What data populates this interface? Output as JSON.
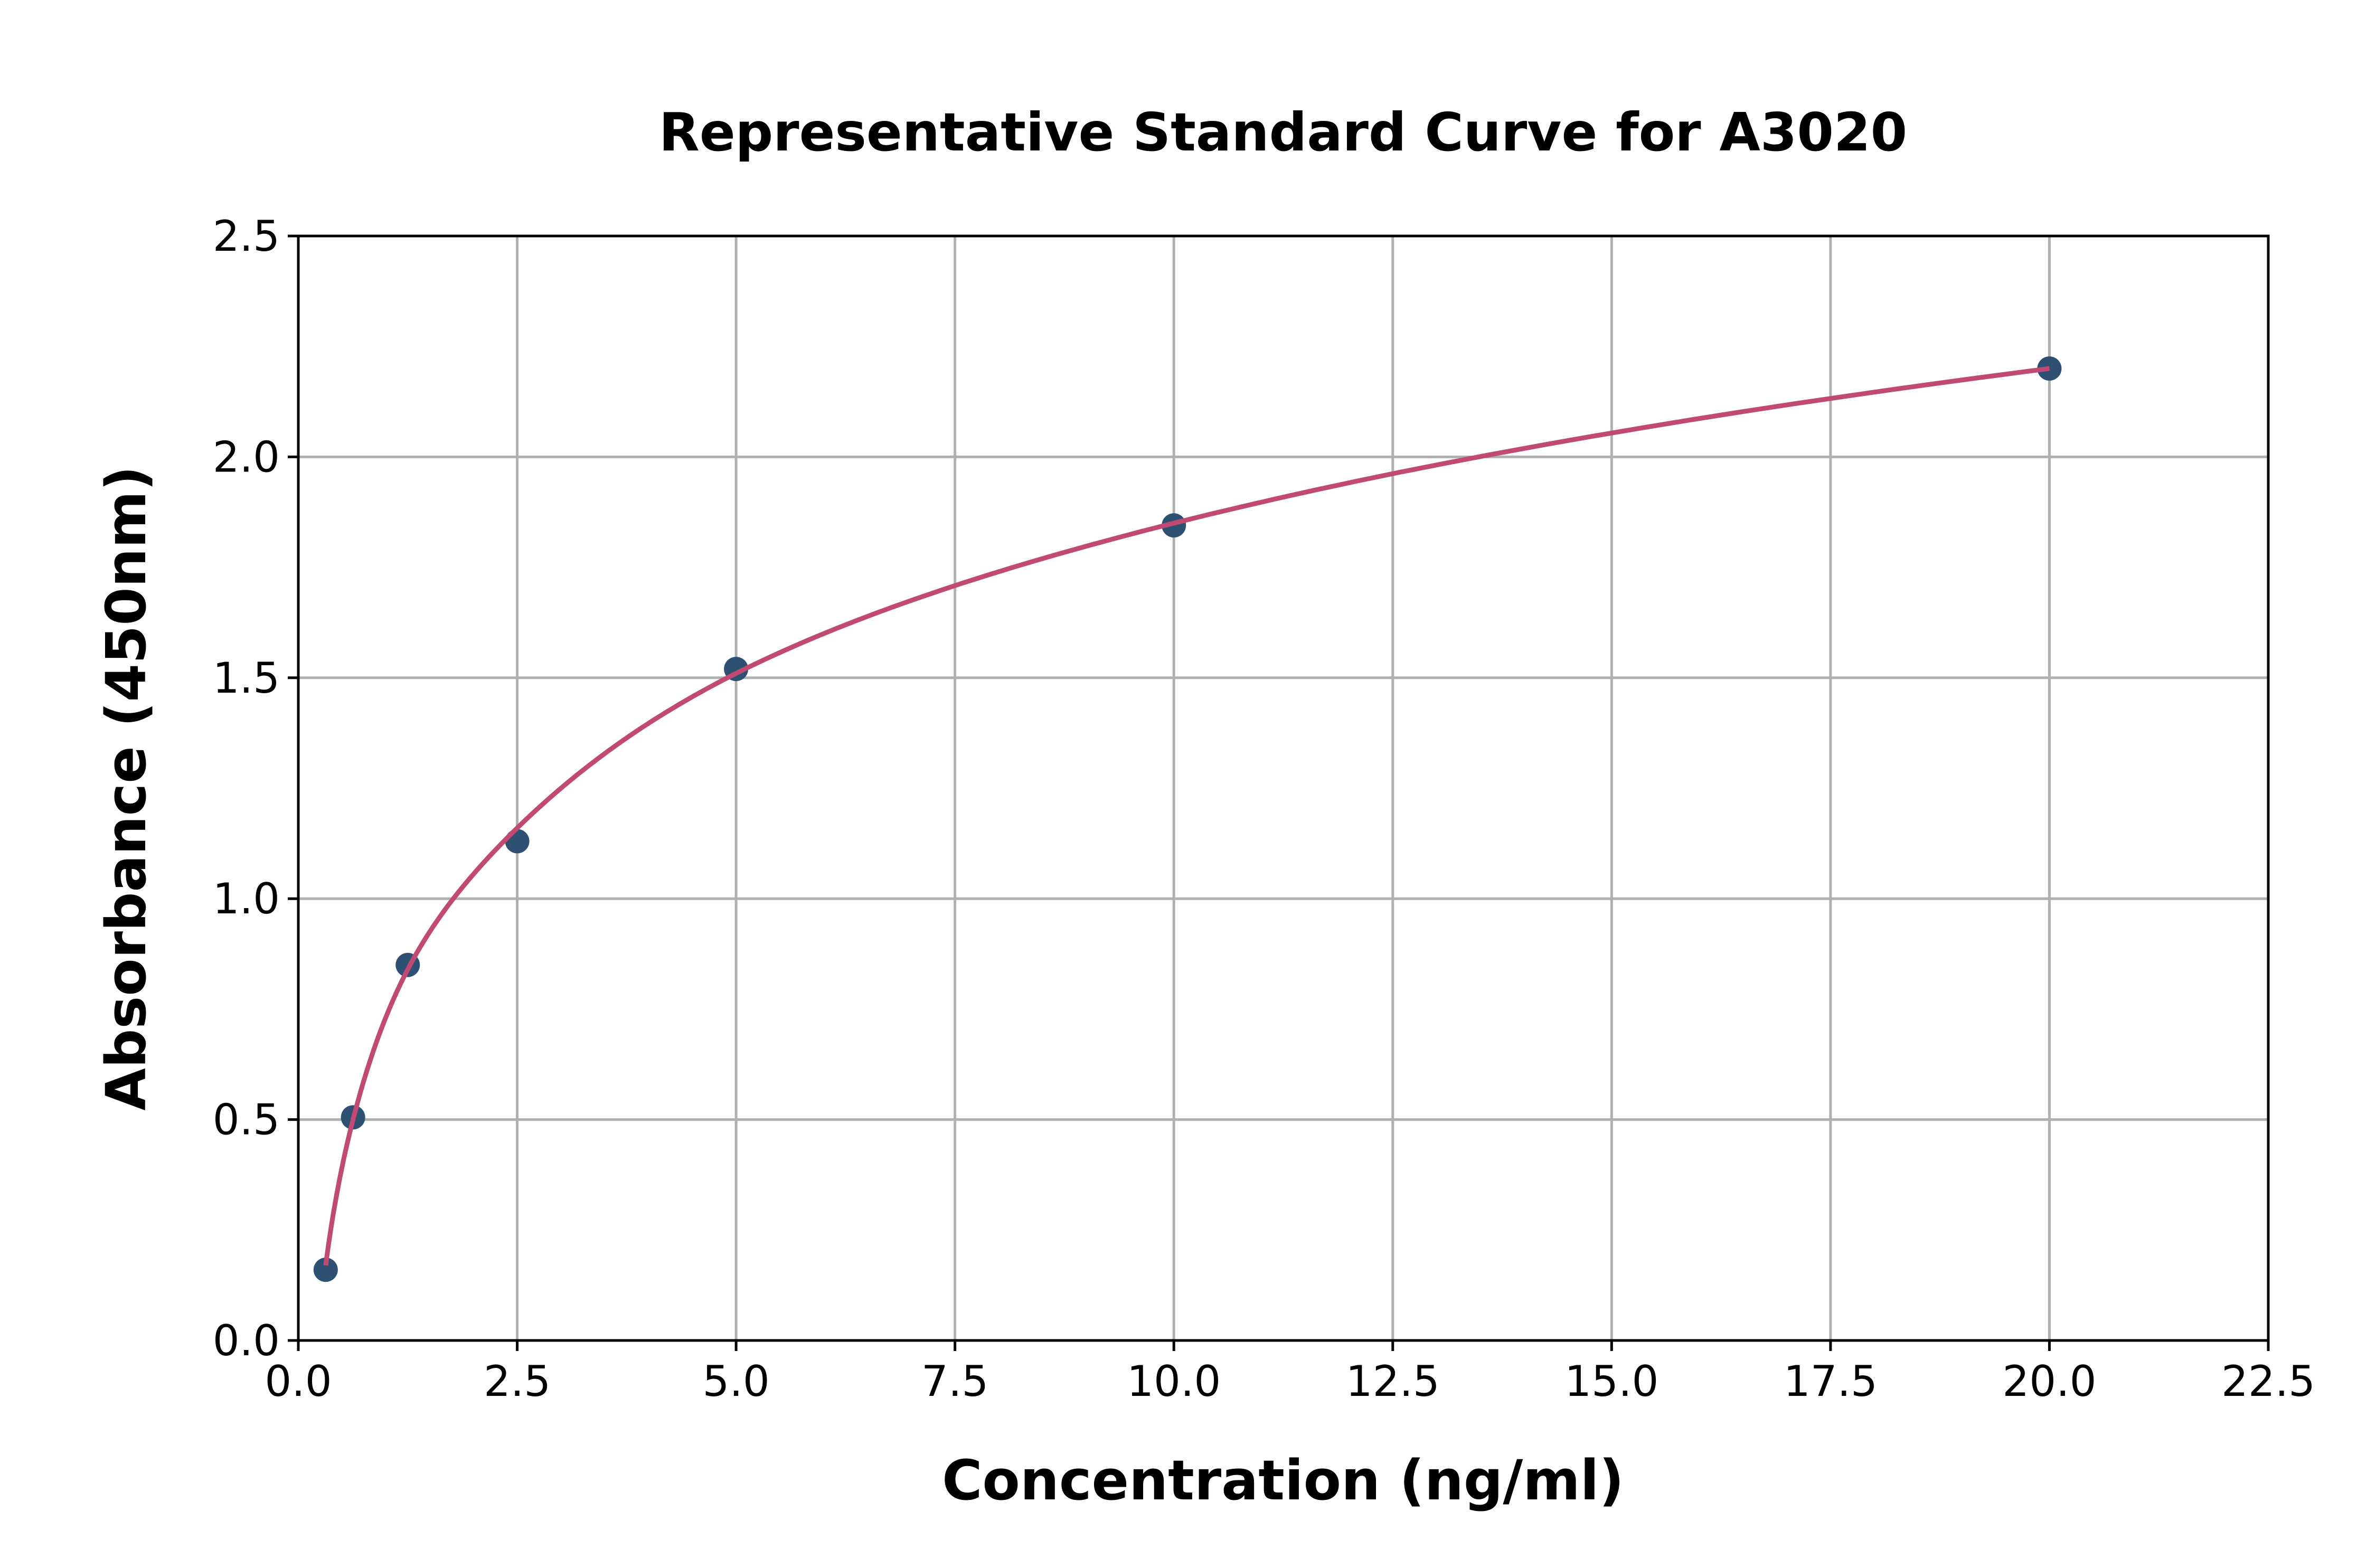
{
  "chart_data": {
    "type": "scatter",
    "title": "Representative Standard Curve for A3020",
    "xlabel": "Concentration (ng/ml)",
    "ylabel": "Absorbance (450nm)",
    "xlim": [
      0,
      22.5
    ],
    "ylim": [
      0,
      2.5
    ],
    "xticks": [
      "0.0",
      "2.5",
      "5.0",
      "7.5",
      "10.0",
      "12.5",
      "15.0",
      "17.5",
      "20.0",
      "22.5"
    ],
    "yticks": [
      "0.0",
      "0.5",
      "1.0",
      "1.5",
      "2.0",
      "2.5"
    ],
    "grid": true,
    "points": {
      "x": [
        0.3125,
        0.625,
        1.25,
        2.5,
        5,
        10,
        20
      ],
      "y": [
        0.16,
        0.505,
        0.85,
        1.13,
        1.52,
        1.845,
        2.2
      ]
    },
    "fit_curve": {
      "x": [
        0.3125,
        0.625,
        1.25,
        2.5,
        5,
        10,
        20
      ],
      "y": [
        0.17,
        0.5,
        0.84,
        1.16,
        1.51,
        1.85,
        2.2
      ]
    },
    "colors": {
      "points": "#2e5073",
      "curve": "#c04a72"
    }
  }
}
